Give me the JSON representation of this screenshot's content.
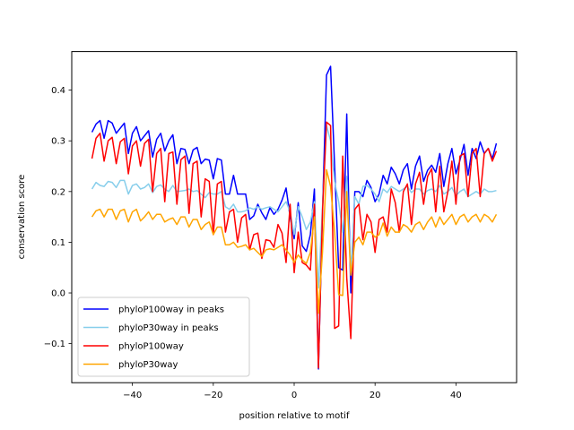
{
  "chart_data": {
    "type": "line",
    "title": "",
    "xlabel": "position relative to motif",
    "ylabel": "conservation score",
    "xlim": [
      -55,
      55
    ],
    "ylim": [
      -0.177,
      0.476
    ],
    "xticks": [
      -40,
      -20,
      0,
      20,
      40
    ],
    "xtick_labels": [
      "−40",
      "−20",
      "0",
      "20",
      "40"
    ],
    "yticks": [
      -0.1,
      0.0,
      0.1,
      0.2,
      0.3,
      0.4
    ],
    "ytick_labels": [
      "−0.1",
      "0.0",
      "0.1",
      "0.2",
      "0.3",
      "0.4"
    ],
    "grid": false,
    "legend_position": "lower-left",
    "x_start": -50,
    "x_step": 1,
    "series": [
      {
        "name": "phyloP100way in peaks",
        "color": "#0000ff",
        "values": [
          0.317,
          0.333,
          0.34,
          0.305,
          0.34,
          0.335,
          0.315,
          0.325,
          0.335,
          0.275,
          0.315,
          0.328,
          0.3,
          0.31,
          0.32,
          0.268,
          0.303,
          0.315,
          0.28,
          0.3,
          0.312,
          0.255,
          0.285,
          0.283,
          0.255,
          0.282,
          0.287,
          0.255,
          0.264,
          0.262,
          0.225,
          0.265,
          0.262,
          0.195,
          0.195,
          0.232,
          0.195,
          0.195,
          0.195,
          0.145,
          0.152,
          0.175,
          0.158,
          0.145,
          0.168,
          0.155,
          0.165,
          0.183,
          0.207,
          0.15,
          0.107,
          0.178,
          0.093,
          0.082,
          0.115,
          0.205,
          -0.15,
          0.16,
          0.43,
          0.447,
          0.25,
          0.05,
          0.045,
          0.353,
          0.0,
          0.2,
          0.2,
          0.19,
          0.222,
          0.208,
          0.18,
          0.195,
          0.232,
          0.215,
          0.248,
          0.235,
          0.215,
          0.243,
          0.255,
          0.205,
          0.25,
          0.27,
          0.22,
          0.242,
          0.252,
          0.238,
          0.275,
          0.21,
          0.255,
          0.285,
          0.235,
          0.262,
          0.293,
          0.232,
          0.285,
          0.265,
          0.298,
          0.275,
          0.285,
          0.265,
          0.295
        ]
      },
      {
        "name": "phyloP30way in peaks",
        "color": "#87ceeb",
        "values": [
          0.205,
          0.218,
          0.212,
          0.21,
          0.22,
          0.218,
          0.208,
          0.222,
          0.222,
          0.195,
          0.212,
          0.215,
          0.205,
          0.208,
          0.215,
          0.198,
          0.21,
          0.213,
          0.205,
          0.2,
          0.212,
          0.2,
          0.201,
          0.202,
          0.205,
          0.2,
          0.202,
          0.195,
          0.188,
          0.198,
          0.195,
          0.195,
          0.2,
          0.17,
          0.165,
          0.175,
          0.16,
          0.16,
          0.162,
          0.168,
          0.165,
          0.17,
          0.165,
          0.168,
          0.17,
          0.165,
          0.16,
          0.17,
          0.18,
          0.16,
          0.115,
          0.17,
          0.15,
          0.125,
          0.14,
          0.18,
          0.01,
          0.17,
          0.33,
          0.3,
          0.22,
          0.18,
          0.12,
          0.23,
          0.04,
          0.19,
          0.175,
          0.21,
          0.212,
          0.205,
          0.195,
          0.18,
          0.205,
          0.198,
          0.21,
          0.205,
          0.2,
          0.205,
          0.21,
          0.198,
          0.205,
          0.205,
          0.195,
          0.202,
          0.205,
          0.2,
          0.212,
          0.195,
          0.2,
          0.208,
          0.192,
          0.2,
          0.205,
          0.19,
          0.195,
          0.2,
          0.195,
          0.205,
          0.2,
          0.2,
          0.202
        ]
      },
      {
        "name": "phyloP100way",
        "color": "#ff0000",
        "values": [
          0.265,
          0.305,
          0.315,
          0.26,
          0.3,
          0.307,
          0.255,
          0.298,
          0.305,
          0.235,
          0.29,
          0.3,
          0.25,
          0.295,
          0.303,
          0.2,
          0.275,
          0.285,
          0.18,
          0.275,
          0.278,
          0.175,
          0.263,
          0.27,
          0.157,
          0.255,
          0.26,
          0.15,
          0.225,
          0.22,
          0.115,
          0.215,
          0.22,
          0.12,
          0.16,
          0.165,
          0.1,
          0.148,
          0.155,
          0.085,
          0.115,
          0.118,
          0.068,
          0.105,
          0.103,
          0.09,
          0.135,
          0.118,
          0.06,
          0.175,
          0.04,
          0.12,
          0.06,
          0.055,
          0.045,
          0.175,
          -0.148,
          0.16,
          0.337,
          0.33,
          -0.07,
          -0.065,
          0.27,
          0.03,
          -0.09,
          0.165,
          0.175,
          0.105,
          0.155,
          0.14,
          0.08,
          0.145,
          0.15,
          0.12,
          0.205,
          0.178,
          0.12,
          0.2,
          0.215,
          0.135,
          0.215,
          0.238,
          0.175,
          0.23,
          0.245,
          0.16,
          0.25,
          0.16,
          0.2,
          0.26,
          0.175,
          0.27,
          0.275,
          0.19,
          0.275,
          0.285,
          0.19,
          0.275,
          0.285,
          0.26,
          0.28
        ]
      },
      {
        "name": "phyloP30way",
        "color": "#ffa500",
        "values": [
          0.15,
          0.162,
          0.165,
          0.15,
          0.165,
          0.165,
          0.145,
          0.162,
          0.165,
          0.14,
          0.16,
          0.165,
          0.142,
          0.15,
          0.16,
          0.145,
          0.155,
          0.155,
          0.14,
          0.145,
          0.148,
          0.135,
          0.15,
          0.15,
          0.13,
          0.145,
          0.145,
          0.125,
          0.135,
          0.14,
          0.115,
          0.13,
          0.13,
          0.095,
          0.095,
          0.1,
          0.09,
          0.092,
          0.095,
          0.085,
          0.088,
          0.08,
          0.072,
          0.085,
          0.087,
          0.085,
          0.09,
          0.095,
          0.085,
          0.075,
          0.06,
          0.075,
          0.065,
          0.058,
          0.08,
          0.15,
          -0.04,
          0.08,
          0.243,
          0.21,
          0.12,
          -0.003,
          -0.005,
          0.2,
          0.035,
          0.1,
          0.11,
          0.095,
          0.12,
          0.12,
          0.11,
          0.115,
          0.138,
          0.112,
          0.13,
          0.12,
          0.12,
          0.135,
          0.13,
          0.12,
          0.135,
          0.14,
          0.125,
          0.14,
          0.15,
          0.13,
          0.15,
          0.135,
          0.145,
          0.155,
          0.135,
          0.15,
          0.155,
          0.14,
          0.15,
          0.155,
          0.14,
          0.155,
          0.15,
          0.14,
          0.155
        ]
      }
    ]
  }
}
